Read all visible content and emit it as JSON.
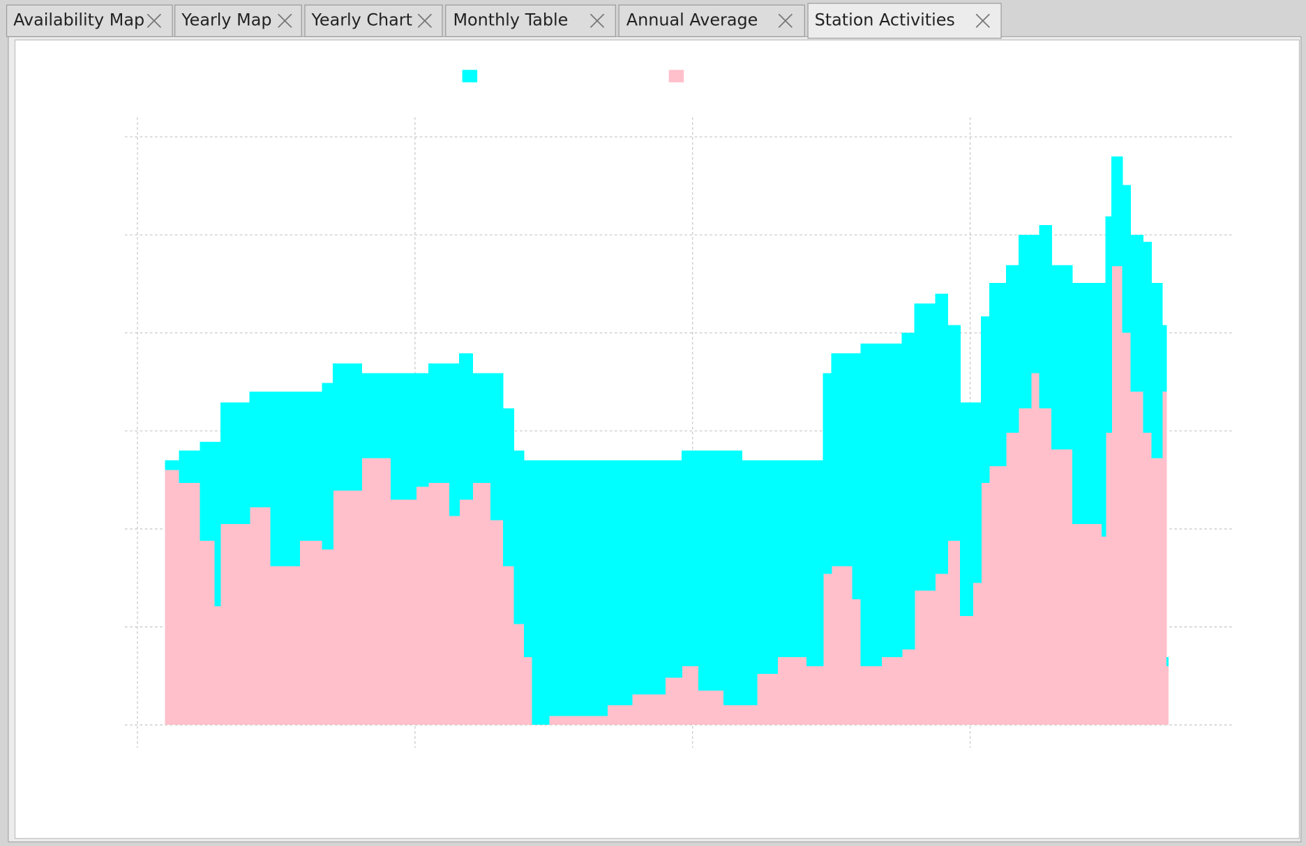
{
  "tabs": [
    "Availability Map",
    "Yearly Map",
    "Yearly Chart",
    "Monthly Table",
    "Annual Average",
    "Station Activities"
  ],
  "chart_data": {
    "type": "stacked-step-area",
    "x": [
      0.099,
      0.15,
      0.225,
      0.278,
      0.299,
      0.404,
      0.479,
      0.584,
      0.665,
      0.704,
      0.808,
      0.913,
      1.003,
      1.048,
      1.123,
      1.159,
      1.207,
      1.272,
      1.317,
      1.356,
      1.392,
      1.422,
      1.482,
      1.692,
      1.781,
      1.901,
      1.961,
      2.021,
      2.111,
      2.177,
      2.231,
      2.305,
      2.41,
      2.47,
      2.5,
      2.575,
      2.605,
      2.68,
      2.754,
      2.799,
      2.874,
      2.919,
      2.964,
      3.009,
      3.039,
      3.069,
      3.129,
      3.174,
      3.219,
      3.249,
      3.293,
      3.368,
      3.428,
      3.473,
      3.488,
      3.509,
      3.548,
      3.578,
      3.623,
      3.653,
      3.692,
      3.707
    ],
    "series": [
      {
        "color": "#ffc0cb",
        "values": [
          2.6,
          2.47,
          1.88,
          1.21,
          2.05,
          2.22,
          1.62,
          1.88,
          1.79,
          2.39,
          2.72,
          2.3,
          2.43,
          2.47,
          2.13,
          2.3,
          2.47,
          2.09,
          1.62,
          1.03,
          0.69,
          0,
          0.09,
          0.2,
          0.31,
          0.48,
          0.6,
          0.35,
          0.2,
          0.2,
          0.52,
          0.69,
          0.6,
          1.54,
          1.62,
          1.28,
          0.6,
          0.69,
          0.77,
          1.37,
          1.54,
          1.88,
          1.11,
          1.45,
          2.47,
          2.64,
          2.98,
          3.23,
          3.59,
          3.23,
          2.81,
          2.05,
          2.05,
          1.92,
          2.98,
          4.68,
          4.0,
          3.4,
          2.98,
          2.72,
          3.4,
          0.6
        ]
      },
      {
        "color": "#00ffff",
        "values": [
          0.1,
          0.33,
          1.01,
          1.68,
          1.24,
          1.18,
          1.78,
          1.52,
          1.7,
          1.3,
          0.87,
          1.29,
          1.16,
          1.22,
          1.56,
          1.49,
          1.12,
          1.5,
          1.61,
          1.77,
          2.01,
          2.7,
          2.61,
          2.5,
          2.39,
          2.22,
          2.2,
          2.45,
          2.6,
          2.5,
          2.18,
          2.01,
          2.1,
          2.05,
          2.17,
          2.51,
          3.29,
          3.2,
          3.23,
          2.93,
          2.86,
          2.2,
          2.18,
          1.84,
          1.7,
          1.87,
          1.71,
          1.77,
          1.41,
          1.87,
          1.88,
          2.46,
          2.46,
          2.59,
          2.21,
          1.12,
          1.51,
          1.6,
          1.95,
          1.79,
          0.68,
          0.09
        ]
      }
    ],
    "xlim": [
      -0.045,
      3.952
    ],
    "ylim": [
      -0.2,
      6.2
    ],
    "xticks": [
      0,
      1,
      2,
      3
    ],
    "yticks": [
      0,
      1,
      2,
      3,
      4,
      5,
      6
    ],
    "grid": true
  }
}
